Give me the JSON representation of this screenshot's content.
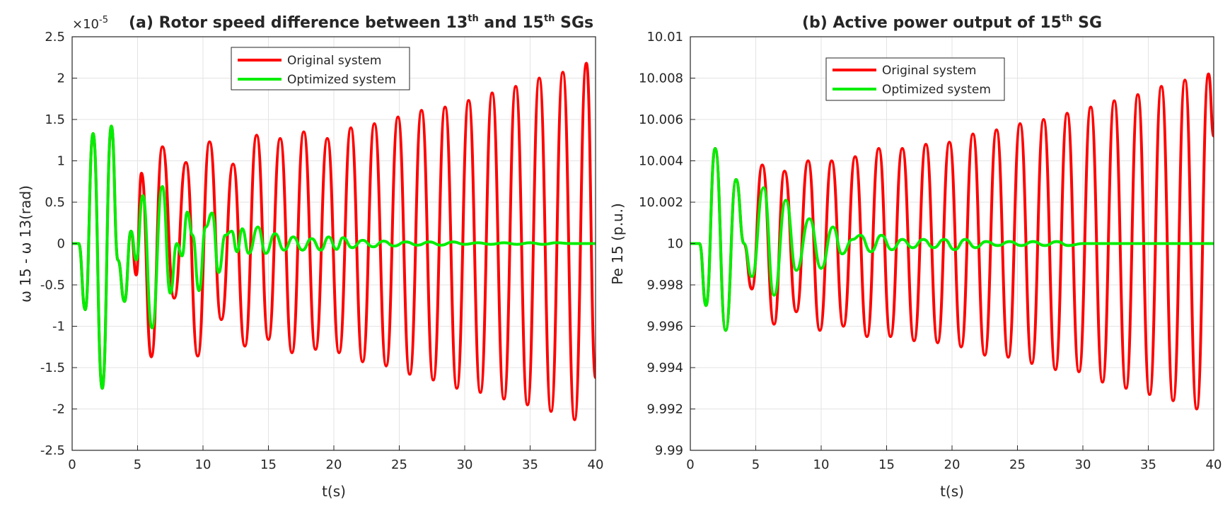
{
  "chart_data": [
    {
      "type": "line",
      "panel": "a",
      "title": "(a) Rotor speed difference between 13",
      "title_sup1": "th",
      "title_mid": " and 15",
      "title_sup2": "th",
      "title_end": " SGs",
      "xlabel": "t(s)",
      "ylabel": "ω 15 - ω 13(rad)",
      "exponent_base": "×10",
      "exponent_power": "-5",
      "xlim": [
        0,
        40
      ],
      "ylim": [
        -2.5,
        2.5
      ],
      "xticks": [
        0,
        5,
        10,
        15,
        20,
        25,
        30,
        35,
        40
      ],
      "yticks": [
        -2.5,
        -2,
        -1.5,
        -1,
        -0.5,
        0,
        0.5,
        1,
        1.5,
        2,
        2.5
      ],
      "xtick_labels": [
        "0",
        "5",
        "10",
        "15",
        "20",
        "25",
        "30",
        "35",
        "40"
      ],
      "ytick_labels": [
        "-2.5",
        "-2",
        "-1.5",
        "-1",
        "-0.5",
        "0",
        "0.5",
        "1",
        "1.5",
        "2",
        "2.5"
      ],
      "grid": true,
      "legend_position": "top-center",
      "series": [
        {
          "name": "Original system",
          "color": "#ff0000",
          "points": [
            [
              0,
              0
            ],
            [
              0.5,
              0
            ],
            [
              1.0,
              -0.8
            ],
            [
              1.6,
              1.33
            ],
            [
              2.3,
              -1.75
            ],
            [
              3.0,
              1.42
            ],
            [
              3.5,
              -0.2
            ],
            [
              4.0,
              -0.7
            ],
            [
              4.5,
              0.15
            ],
            [
              4.9,
              -0.38
            ],
            [
              5.3,
              0.85
            ],
            [
              6.05,
              -1.37
            ],
            [
              6.9,
              1.17
            ],
            [
              7.8,
              -0.66
            ],
            [
              8.7,
              0.98
            ],
            [
              9.6,
              -1.36
            ],
            [
              10.5,
              1.23
            ],
            [
              11.4,
              -0.92
            ],
            [
              12.3,
              0.96
            ],
            [
              13.2,
              -1.24
            ],
            [
              14.1,
              1.31
            ],
            [
              15.0,
              -1.16
            ],
            [
              15.9,
              1.27
            ],
            [
              16.8,
              -1.32
            ],
            [
              17.7,
              1.35
            ],
            [
              18.6,
              -1.28
            ],
            [
              19.5,
              1.27
            ],
            [
              20.4,
              -1.32
            ],
            [
              21.3,
              1.4
            ],
            [
              22.2,
              -1.43
            ],
            [
              23.1,
              1.45
            ],
            [
              24.0,
              -1.48
            ],
            [
              24.9,
              1.53
            ],
            [
              25.8,
              -1.58
            ],
            [
              26.7,
              1.61
            ],
            [
              27.6,
              -1.65
            ],
            [
              28.5,
              1.65
            ],
            [
              29.4,
              -1.75
            ],
            [
              30.3,
              1.73
            ],
            [
              31.2,
              -1.8
            ],
            [
              32.1,
              1.82
            ],
            [
              33.0,
              -1.88
            ],
            [
              33.9,
              1.9
            ],
            [
              34.8,
              -1.95
            ],
            [
              35.7,
              2.0
            ],
            [
              36.6,
              -2.03
            ],
            [
              37.5,
              2.07
            ],
            [
              38.4,
              -2.13
            ],
            [
              39.3,
              2.18
            ],
            [
              40.0,
              -1.62
            ]
          ]
        },
        {
          "name": "Optimized system",
          "color": "#00ee00",
          "points": [
            [
              0,
              0
            ],
            [
              0.5,
              0
            ],
            [
              1.0,
              -0.8
            ],
            [
              1.6,
              1.33
            ],
            [
              2.3,
              -1.75
            ],
            [
              3.0,
              1.42
            ],
            [
              3.5,
              -0.2
            ],
            [
              4.0,
              -0.7
            ],
            [
              4.5,
              0.15
            ],
            [
              4.9,
              -0.2
            ],
            [
              5.4,
              0.58
            ],
            [
              6.1,
              -1.02
            ],
            [
              6.9,
              0.69
            ],
            [
              7.5,
              -0.6
            ],
            [
              8.0,
              0.0
            ],
            [
              8.4,
              -0.15
            ],
            [
              8.8,
              0.38
            ],
            [
              9.2,
              0.1
            ],
            [
              9.7,
              -0.57
            ],
            [
              10.2,
              0.2
            ],
            [
              10.7,
              0.37
            ],
            [
              11.2,
              -0.35
            ],
            [
              11.7,
              0.1
            ],
            [
              12.2,
              0.15
            ],
            [
              12.6,
              -0.1
            ],
            [
              13.0,
              0.18
            ],
            [
              13.5,
              -0.12
            ],
            [
              14.2,
              0.2
            ],
            [
              14.8,
              -0.12
            ],
            [
              15.5,
              0.12
            ],
            [
              16.2,
              -0.08
            ],
            [
              16.9,
              0.08
            ],
            [
              17.6,
              -0.08
            ],
            [
              18.3,
              0.06
            ],
            [
              19.0,
              -0.08
            ],
            [
              19.6,
              0.08
            ],
            [
              20.2,
              -0.07
            ],
            [
              20.7,
              0.07
            ],
            [
              21.4,
              -0.05
            ],
            [
              22.2,
              0.04
            ],
            [
              23.0,
              -0.04
            ],
            [
              23.8,
              0.03
            ],
            [
              24.6,
              -0.03
            ],
            [
              25.5,
              0.02
            ],
            [
              26.4,
              -0.02
            ],
            [
              27.3,
              0.02
            ],
            [
              28.2,
              -0.02
            ],
            [
              29.1,
              0.02
            ],
            [
              30.0,
              -0.01
            ],
            [
              31.0,
              0.01
            ],
            [
              32.0,
              -0.01
            ],
            [
              33.0,
              0.01
            ],
            [
              34.0,
              -0.01
            ],
            [
              35.0,
              0.01
            ],
            [
              36.0,
              -0.01
            ],
            [
              37.0,
              0.01
            ],
            [
              38.0,
              0
            ],
            [
              39.0,
              0
            ],
            [
              40.0,
              0
            ]
          ]
        }
      ]
    },
    {
      "type": "line",
      "panel": "b",
      "title": "(b) Active power output of 15",
      "title_sup1": "th",
      "title_end": " SG",
      "xlabel": "t(s)",
      "ylabel": "Pe 15 (p.u.)",
      "xlim": [
        0,
        40
      ],
      "ylim": [
        9.99,
        10.01
      ],
      "xticks": [
        0,
        5,
        10,
        15,
        20,
        25,
        30,
        35,
        40
      ],
      "yticks": [
        9.99,
        9.992,
        9.994,
        9.996,
        9.998,
        10,
        10.002,
        10.004,
        10.006,
        10.008,
        10.01
      ],
      "xtick_labels": [
        "0",
        "5",
        "10",
        "15",
        "20",
        "25",
        "30",
        "35",
        "40"
      ],
      "ytick_labels": [
        "9.99",
        "9.992",
        "9.994",
        "9.996",
        "9.998",
        "10",
        "10.002",
        "10.004",
        "10.006",
        "10.008",
        "10.01"
      ],
      "grid": true,
      "legend_position": "top-center",
      "series": [
        {
          "name": "Original system",
          "color": "#ff0000",
          "points": [
            [
              0,
              10.0
            ],
            [
              0.7,
              10.0
            ],
            [
              1.2,
              9.997
            ],
            [
              1.9,
              10.0046
            ],
            [
              2.7,
              9.9958
            ],
            [
              3.5,
              10.0031
            ],
            [
              4.1,
              10.0
            ],
            [
              4.7,
              9.9978
            ],
            [
              5.5,
              10.0038
            ],
            [
              6.4,
              9.9961
            ],
            [
              7.2,
              10.0035
            ],
            [
              8.1,
              9.9967
            ],
            [
              9.0,
              10.004
            ],
            [
              9.9,
              9.9958
            ],
            [
              10.8,
              10.004
            ],
            [
              11.7,
              9.996
            ],
            [
              12.6,
              10.0042
            ],
            [
              13.5,
              9.9955
            ],
            [
              14.4,
              10.0046
            ],
            [
              15.3,
              9.9955
            ],
            [
              16.2,
              10.0046
            ],
            [
              17.1,
              9.9953
            ],
            [
              18.0,
              10.0048
            ],
            [
              18.9,
              9.9952
            ],
            [
              19.8,
              10.0049
            ],
            [
              20.7,
              9.995
            ],
            [
              21.6,
              10.0053
            ],
            [
              22.5,
              9.9946
            ],
            [
              23.4,
              10.0055
            ],
            [
              24.3,
              9.9945
            ],
            [
              25.2,
              10.0058
            ],
            [
              26.1,
              9.9942
            ],
            [
              27.0,
              10.006
            ],
            [
              27.9,
              9.9939
            ],
            [
              28.8,
              10.0063
            ],
            [
              29.7,
              9.9938
            ],
            [
              30.6,
              10.0066
            ],
            [
              31.5,
              9.9933
            ],
            [
              32.4,
              10.0069
            ],
            [
              33.3,
              9.993
            ],
            [
              34.2,
              10.0072
            ],
            [
              35.1,
              9.9927
            ],
            [
              36.0,
              10.0076
            ],
            [
              36.9,
              9.9924
            ],
            [
              37.8,
              10.0079
            ],
            [
              38.7,
              9.992
            ],
            [
              39.6,
              10.0082
            ],
            [
              40.0,
              10.0052
            ]
          ]
        },
        {
          "name": "Optimized system",
          "color": "#00ee00",
          "points": [
            [
              0,
              10.0
            ],
            [
              0.7,
              10.0
            ],
            [
              1.2,
              9.997
            ],
            [
              1.9,
              10.0046
            ],
            [
              2.7,
              9.9958
            ],
            [
              3.5,
              10.0031
            ],
            [
              4.1,
              10.0
            ],
            [
              4.7,
              9.9984
            ],
            [
              5.6,
              10.0027
            ],
            [
              6.4,
              9.9975
            ],
            [
              7.3,
              10.0021
            ],
            [
              8.1,
              9.9987
            ],
            [
              9.1,
              10.0012
            ],
            [
              10.0,
              9.9988
            ],
            [
              10.9,
              10.0008
            ],
            [
              11.6,
              9.9995
            ],
            [
              12.4,
              10.0002
            ],
            [
              13.0,
              10.0004
            ],
            [
              13.8,
              9.9996
            ],
            [
              14.6,
              10.0004
            ],
            [
              15.4,
              9.9997
            ],
            [
              16.2,
              10.0002
            ],
            [
              17.0,
              9.9998
            ],
            [
              17.8,
              10.0002
            ],
            [
              18.6,
              9.9998
            ],
            [
              19.4,
              10.0002
            ],
            [
              20.2,
              9.9997
            ],
            [
              21.0,
              10.0002
            ],
            [
              21.8,
              9.9998
            ],
            [
              22.6,
              10.0001
            ],
            [
              23.5,
              9.9999
            ],
            [
              24.4,
              10.0001
            ],
            [
              25.3,
              9.9999
            ],
            [
              26.2,
              10.0001
            ],
            [
              27.1,
              9.9999
            ],
            [
              28.0,
              10.0001
            ],
            [
              28.9,
              9.9999
            ],
            [
              30.0,
              10.0
            ],
            [
              31.0,
              10.0
            ],
            [
              33.0,
              10.0
            ],
            [
              35.0,
              10.0
            ],
            [
              37.0,
              10.0
            ],
            [
              40.0,
              10.0
            ]
          ]
        }
      ]
    }
  ]
}
